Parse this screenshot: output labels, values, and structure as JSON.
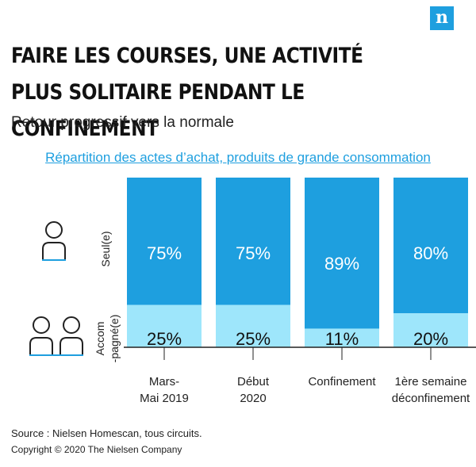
{
  "logo": {
    "letter": "n"
  },
  "title": "FAIRE LES COURSES, UNE ACTIVITÉ PLUS SOLITAIRE PENDANT LE CONFINEMENT",
  "subtitle": "Retour progressif vers la normale",
  "section_title": "Répartition des actes d’achat, produits de grande consommation",
  "row_labels": {
    "alone": "Seul(e)",
    "accompanied_line1": "Accom",
    "accompanied_line2": "-pagné(e)"
  },
  "icons": {
    "alone": "person-icon",
    "accompanied": "two-people-icon"
  },
  "colors": {
    "alone": "#1e9fdf",
    "accompanied": "#9ee6fb",
    "accent": "#1e9fdf"
  },
  "chart_data": {
    "type": "bar",
    "stacked": true,
    "normalized_percent": true,
    "categories": [
      [
        "Mars-",
        "Mai 2019"
      ],
      [
        "Début",
        "2020"
      ],
      [
        "Confinement"
      ],
      [
        "1ère semaine",
        "déconfinement"
      ]
    ],
    "series": [
      {
        "name": "Seul(e)",
        "values": [
          75,
          75,
          89,
          80
        ],
        "labels": [
          "75%",
          "75%",
          "89%",
          "80%"
        ]
      },
      {
        "name": "Accompagné(e)",
        "values": [
          25,
          25,
          11,
          20
        ],
        "labels": [
          "25%",
          "25%",
          "11%",
          "20%"
        ]
      }
    ],
    "ylim": [
      0,
      100
    ]
  },
  "source": "Source : Nielsen Homescan, tous circuits.",
  "copyright": "Copyright © 2020 The Nielsen Company"
}
